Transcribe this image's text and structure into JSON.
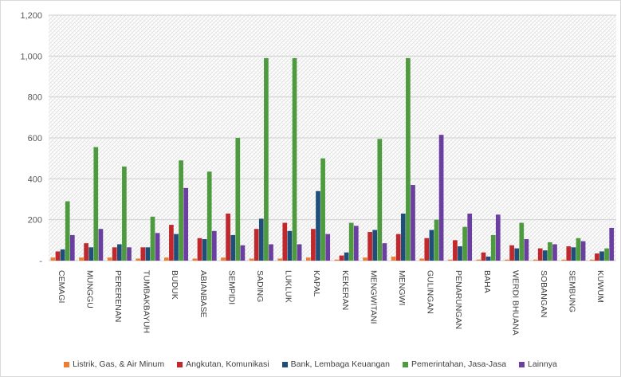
{
  "chart_data": {
    "type": "bar",
    "title": "",
    "xlabel": "",
    "ylabel": "",
    "ylim": [
      0,
      1200
    ],
    "yticks": [
      0,
      200,
      400,
      600,
      800,
      1000,
      1200
    ],
    "ytick_labels": [
      "-",
      "200",
      "400",
      "600",
      "800",
      "1,000",
      "1,200"
    ],
    "grid": "hatched plot area",
    "legend_position": "bottom",
    "categories": [
      "CEMAGI",
      "MUNGGU",
      "PERERENAN",
      "TUMBAKBAYUH",
      "BUDUK",
      "ABIANBASE",
      "SEMPIDI",
      "SADING",
      "LUKLUK",
      "KAPAL",
      "KEKERAN",
      "MENGWITANI",
      "MENGWI",
      "GULINGAN",
      "PENARUNGAN",
      "BAHA",
      "WERDI BHUANA",
      "SOBANGAN",
      "SEMBUNG",
      "KUWUM"
    ],
    "series": [
      {
        "name": "Listrik, Gas, & Air Minum",
        "color": "#ED7D31",
        "values": [
          15,
          15,
          15,
          10,
          15,
          10,
          15,
          10,
          10,
          15,
          5,
          15,
          20,
          10,
          5,
          5,
          5,
          5,
          5,
          5
        ]
      },
      {
        "name": "Angkutan, Komunikasi",
        "color": "#C0282D",
        "values": [
          45,
          85,
          65,
          65,
          175,
          110,
          230,
          155,
          185,
          155,
          25,
          140,
          130,
          110,
          100,
          40,
          75,
          60,
          70,
          35
        ]
      },
      {
        "name": "Bank, Lembaga Keuangan",
        "color": "#1F4E79",
        "values": [
          55,
          65,
          80,
          65,
          130,
          105,
          125,
          205,
          145,
          340,
          40,
          150,
          230,
          150,
          70,
          20,
          60,
          50,
          65,
          45
        ]
      },
      {
        "name": "Pemerintahan, Jasa-Jasa",
        "color": "#4E9A3F",
        "values": [
          290,
          555,
          460,
          215,
          490,
          435,
          600,
          990,
          990,
          500,
          185,
          595,
          990,
          200,
          165,
          125,
          185,
          90,
          110,
          60
        ]
      },
      {
        "name": "Lainnya",
        "color": "#6B3FA0",
        "values": [
          125,
          155,
          65,
          135,
          355,
          145,
          75,
          80,
          80,
          130,
          170,
          85,
          370,
          615,
          230,
          225,
          105,
          80,
          95,
          160
        ]
      }
    ]
  }
}
